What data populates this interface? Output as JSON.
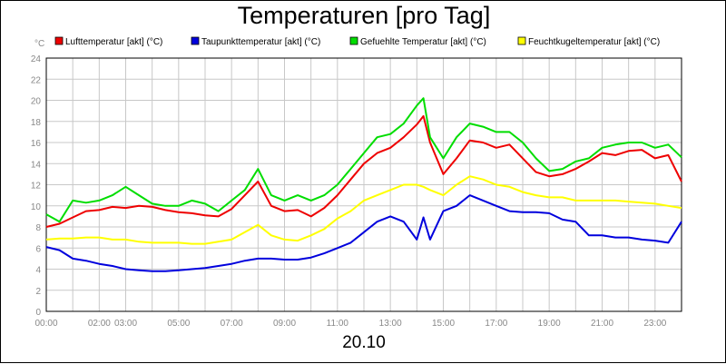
{
  "chart_data": {
    "type": "line",
    "title": "Temperaturen [pro Tag]",
    "date": "20.10",
    "y_unit": "°C",
    "ylim": [
      0,
      24
    ],
    "y_ticks": [
      0,
      2,
      4,
      6,
      8,
      10,
      12,
      14,
      16,
      18,
      20,
      22,
      24
    ],
    "xlim": [
      0,
      24
    ],
    "x_ticks": [
      {
        "h": 0,
        "label": "00:00"
      },
      {
        "h": 2,
        "label": "02:00"
      },
      {
        "h": 3,
        "label": "03:00"
      },
      {
        "h": 5,
        "label": "05:00"
      },
      {
        "h": 7,
        "label": "07:00"
      },
      {
        "h": 9,
        "label": "09:00"
      },
      {
        "h": 11,
        "label": "11:00"
      },
      {
        "h": 13,
        "label": "13:00"
      },
      {
        "h": 15,
        "label": "15:00"
      },
      {
        "h": 17,
        "label": "17:00"
      },
      {
        "h": 19,
        "label": "19:00"
      },
      {
        "h": 21,
        "label": "21:00"
      },
      {
        "h": 23,
        "label": "23:00"
      }
    ],
    "grid": true,
    "legend_position": "top",
    "x": [
      0,
      0.5,
      1,
      1.5,
      2,
      2.5,
      3,
      3.5,
      4,
      4.5,
      5,
      5.5,
      6,
      6.5,
      7,
      7.5,
      8,
      8.5,
      9,
      9.5,
      10,
      10.5,
      11,
      11.5,
      12,
      12.5,
      13,
      13.5,
      14,
      14.25,
      14.5,
      15,
      15.5,
      16,
      16.5,
      17,
      17.5,
      18,
      18.5,
      19,
      19.5,
      20,
      20.5,
      21,
      21.5,
      22,
      22.5,
      23,
      23.5,
      24
    ],
    "series": [
      {
        "name": "Lufttemperatur [akt] (°C)",
        "color": "#ee0000",
        "values": [
          8,
          8.3,
          8.9,
          9.5,
          9.6,
          9.9,
          9.8,
          10,
          9.9,
          9.6,
          9.4,
          9.3,
          9.1,
          9,
          9.7,
          11,
          12.3,
          10,
          9.5,
          9.6,
          9,
          9.8,
          11,
          12.5,
          14,
          15,
          15.5,
          16.5,
          17.7,
          18.5,
          16,
          13,
          14.5,
          16.2,
          16,
          15.5,
          15.8,
          14.5,
          13.2,
          12.8,
          13,
          13.5,
          14.2,
          15,
          14.8,
          15.2,
          15.3,
          14.5,
          14.8,
          12.3
        ]
      },
      {
        "name": "Taupunkttemperatur [akt] (°C)",
        "color": "#0000dd",
        "values": [
          6.1,
          5.8,
          5,
          4.8,
          4.5,
          4.3,
          4,
          3.9,
          3.8,
          3.8,
          3.9,
          4,
          4.1,
          4.3,
          4.5,
          4.8,
          5,
          5,
          4.9,
          4.9,
          5.1,
          5.5,
          6,
          6.5,
          7.5,
          8.5,
          9,
          8.5,
          6.8,
          8.9,
          6.8,
          9.5,
          10,
          11,
          10.5,
          10,
          9.5,
          9.4,
          9.4,
          9.3,
          8.7,
          8.5,
          7.2,
          7.2,
          7,
          7,
          6.8,
          6.7,
          6.5,
          8.5
        ]
      },
      {
        "name": "Gefuehlte Temperatur [akt] (°C)",
        "color": "#00dd00",
        "values": [
          9.2,
          8.5,
          10.5,
          10.3,
          10.5,
          11,
          11.8,
          11,
          10.2,
          10,
          10,
          10.5,
          10.2,
          9.5,
          10.5,
          11.5,
          13.5,
          11,
          10.5,
          11,
          10.5,
          11,
          12,
          13.5,
          15,
          16.5,
          16.8,
          17.8,
          19.5,
          20.2,
          16.5,
          14.5,
          16.5,
          17.8,
          17.5,
          17,
          17,
          16,
          14.5,
          13.3,
          13.5,
          14.2,
          14.5,
          15.5,
          15.8,
          16,
          16,
          15.5,
          15.8,
          14.6
        ]
      },
      {
        "name": "Feuchtkugeltemperatur [akt] (°C)",
        "color": "#ffff00",
        "values": [
          6.8,
          6.9,
          6.9,
          7,
          7,
          6.8,
          6.8,
          6.6,
          6.5,
          6.5,
          6.5,
          6.4,
          6.4,
          6.6,
          6.8,
          7.5,
          8.2,
          7.2,
          6.8,
          6.7,
          7.2,
          7.8,
          8.8,
          9.5,
          10.5,
          11,
          11.5,
          12,
          12,
          11.8,
          11.5,
          11,
          12,
          12.8,
          12.5,
          12,
          11.8,
          11.3,
          11,
          10.8,
          10.8,
          10.5,
          10.5,
          10.5,
          10.5,
          10.4,
          10.3,
          10.2,
          10,
          9.8
        ]
      }
    ]
  }
}
